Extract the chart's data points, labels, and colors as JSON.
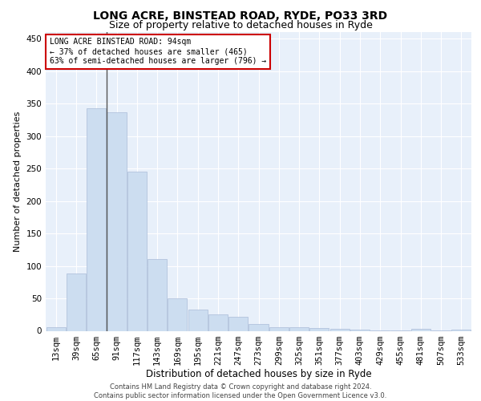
{
  "title": "LONG ACRE, BINSTEAD ROAD, RYDE, PO33 3RD",
  "subtitle": "Size of property relative to detached houses in Ryde",
  "xlabel": "Distribution of detached houses by size in Ryde",
  "ylabel": "Number of detached properties",
  "categories": [
    "13sqm",
    "39sqm",
    "65sqm",
    "91sqm",
    "117sqm",
    "143sqm",
    "169sqm",
    "195sqm",
    "221sqm",
    "247sqm",
    "273sqm",
    "299sqm",
    "325sqm",
    "351sqm",
    "377sqm",
    "403sqm",
    "429sqm",
    "455sqm",
    "481sqm",
    "507sqm",
    "533sqm"
  ],
  "values": [
    6,
    88,
    343,
    336,
    245,
    110,
    50,
    33,
    25,
    21,
    10,
    6,
    5,
    4,
    3,
    2,
    1,
    1,
    3,
    1,
    2
  ],
  "bar_color": "#ccddf0",
  "bar_edge_color": "#aabbd8",
  "annotation_text": "LONG ACRE BINSTEAD ROAD: 94sqm\n← 37% of detached houses are smaller (465)\n63% of semi-detached houses are larger (796) →",
  "annotation_box_color": "#ffffff",
  "annotation_box_edge_color": "#cc0000",
  "vline_color": "#555555",
  "vline_bin_index": 3,
  "footer_text": "Contains HM Land Registry data © Crown copyright and database right 2024.\nContains public sector information licensed under the Open Government Licence v3.0.",
  "ylim": [
    0,
    460
  ],
  "yticks": [
    0,
    50,
    100,
    150,
    200,
    250,
    300,
    350,
    400,
    450
  ],
  "background_color": "#e8f0fa",
  "grid_color": "#ffffff",
  "title_fontsize": 10,
  "subtitle_fontsize": 9,
  "xlabel_fontsize": 8.5,
  "ylabel_fontsize": 8,
  "tick_fontsize": 7.5,
  "annotation_fontsize": 7,
  "footer_fontsize": 6
}
